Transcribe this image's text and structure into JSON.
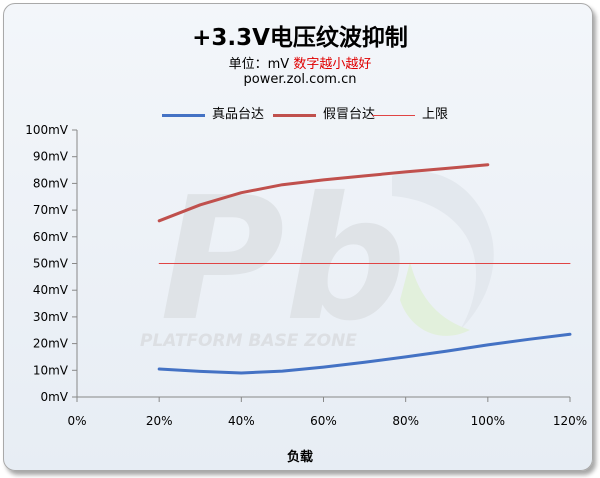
{
  "title": "+3.3V电压纹波抑制",
  "subtitle": {
    "unit": "单位：mV",
    "note": "数字越小越好"
  },
  "source": "power.zol.com.cn",
  "watermark": {
    "big": "Pb",
    "text": "PLATFORM BASE ZONE"
  },
  "chart_data": {
    "type": "line",
    "xlabel": "负载",
    "ylabel": "",
    "x_ticks": [
      "0%",
      "20%",
      "40%",
      "60%",
      "80%",
      "100%",
      "120%"
    ],
    "y_ticks": [
      "0mV",
      "10mV",
      "20mV",
      "30mV",
      "40mV",
      "50mV",
      "60mV",
      "70mV",
      "80mV",
      "90mV",
      "100mV"
    ],
    "xlim": [
      0,
      120
    ],
    "ylim": [
      0,
      100
    ],
    "grid": false,
    "legend_position": "top",
    "series": [
      {
        "name": "真品台达",
        "color": "#4472c4",
        "x": [
          20,
          30,
          40,
          50,
          60,
          70,
          80,
          90,
          100,
          110,
          120
        ],
        "y": [
          10.5,
          9.6,
          9.0,
          9.7,
          11.2,
          13.0,
          15.0,
          17.2,
          19.5,
          21.6,
          23.5
        ]
      },
      {
        "name": "假冒台达",
        "color": "#c0504d",
        "x": [
          20,
          30,
          40,
          50,
          60,
          70,
          80,
          90,
          100
        ],
        "y": [
          66,
          72,
          76.5,
          79.5,
          81.3,
          82.8,
          84.3,
          85.6,
          87
        ]
      },
      {
        "name": "上限",
        "color": "#e04444",
        "x": [
          20,
          120
        ],
        "y": [
          50,
          50
        ]
      }
    ]
  }
}
